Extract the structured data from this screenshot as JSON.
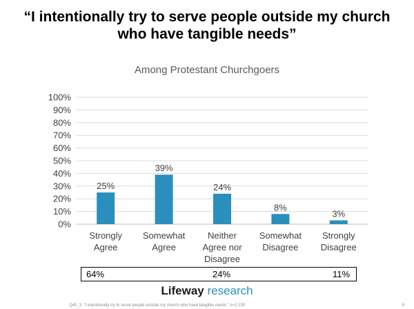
{
  "title_line1": "“I intentionally try to serve people outside my church",
  "title_line2": "who have tangible needs”",
  "subtitle": "Among Protestant Churchgoers",
  "chart_data": {
    "type": "bar",
    "title": "Among Protestant Churchgoers",
    "categories": [
      [
        "Strongly",
        "Agree"
      ],
      [
        "Somewhat",
        "Agree"
      ],
      [
        "Neither",
        "Agree nor",
        "Disagree"
      ],
      [
        "Somewhat",
        "Disagree"
      ],
      [
        "Strongly",
        "Disagree"
      ]
    ],
    "values": [
      25,
      39,
      24,
      8,
      3
    ],
    "value_labels": [
      "25%",
      "39%",
      "24%",
      "8%",
      "3%"
    ],
    "ylim": [
      0,
      100
    ],
    "yticks": [
      0,
      10,
      20,
      30,
      40,
      50,
      60,
      70,
      80,
      90,
      100
    ],
    "ytick_labels": [
      "0%",
      "10%",
      "20%",
      "30%",
      "40%",
      "50%",
      "60%",
      "70%",
      "80%",
      "90%",
      "100%"
    ],
    "bar_color": "#2a8fbd",
    "grid": true,
    "grid_color": "#d9d9d9"
  },
  "summary": {
    "agree": "64%",
    "neither": "24%",
    "disagree": "11%"
  },
  "logo": {
    "brand": "Lifeway",
    "sub": "research"
  },
  "footnote": "Q40_3: “I intentionally try to serve people outside my church who have tangible needs.” n=2,130",
  "page_number": "9"
}
